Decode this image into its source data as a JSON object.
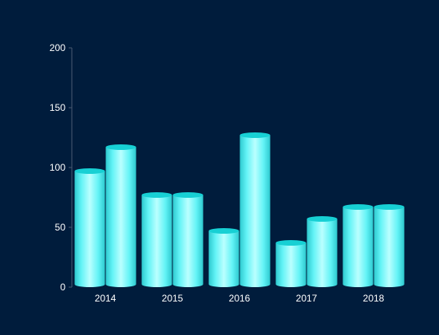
{
  "chart_data": {
    "type": "bar",
    "categories": [
      "2014",
      "2015",
      "2016",
      "2017",
      "2018"
    ],
    "series": [
      {
        "values": [
          97,
          77,
          47,
          37,
          67
        ]
      },
      {
        "values": [
          117,
          77,
          127,
          57,
          67
        ]
      }
    ],
    "ylim": [
      0,
      200
    ],
    "yticks": [
      0,
      50,
      100,
      150,
      200
    ],
    "grid": false,
    "legend": "none",
    "colors": {
      "background": "#001c3c",
      "bar_edge": "#2ec9cf",
      "bar_mid": "#7ffdfd",
      "bar_light": "#baffff",
      "bar_top": "#17d0d4",
      "axis": "#4a5a72",
      "text": "#ffffff"
    }
  }
}
